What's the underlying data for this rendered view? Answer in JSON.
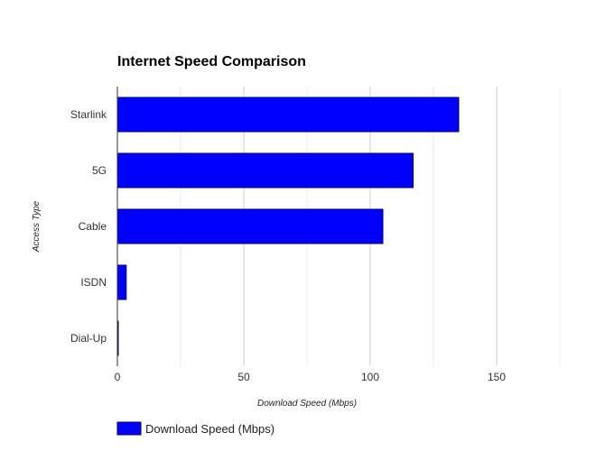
{
  "chart_data": {
    "type": "bar",
    "orientation": "horizontal",
    "title": "Internet Speed Comparison",
    "xlabel": "Download Speed (Mbps)",
    "ylabel": "Access Type",
    "categories": [
      "Starlink",
      "5G",
      "Cable",
      "ISDN",
      "Dial-Up"
    ],
    "series": [
      {
        "name": "Download Speed (Mbps)",
        "color": "#0000ff",
        "values": [
          135,
          117,
          105,
          3.5,
          0.056
        ]
      }
    ],
    "xlim": [
      0,
      150
    ],
    "xticks": [
      "0",
      "50",
      "100",
      "150"
    ],
    "grid": true,
    "legend": "bottom-left"
  }
}
